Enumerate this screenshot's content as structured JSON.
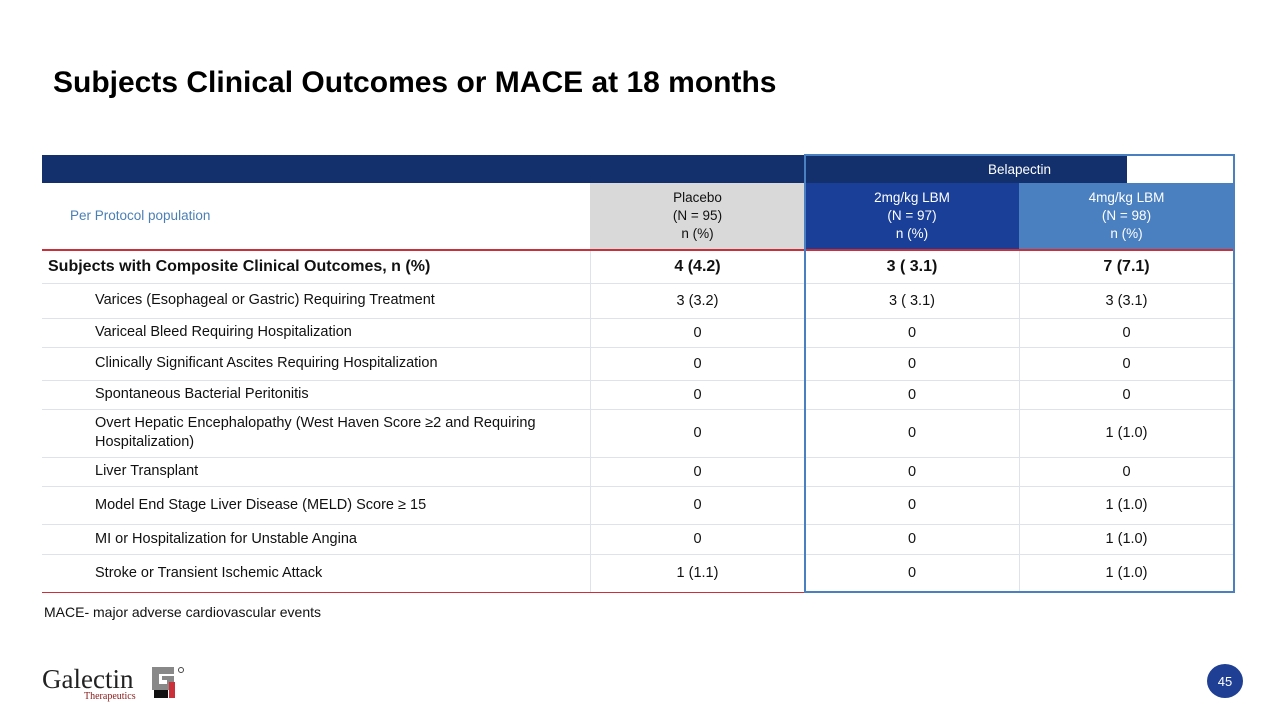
{
  "title": "Subjects Clinical Outcomes or MACE at 18 months",
  "table": {
    "group_header": "Belapectin",
    "population": "Per Protocol population",
    "columns": [
      {
        "name": "Placebo",
        "n": "(N = 95)",
        "unit": "n (%)"
      },
      {
        "name": "2mg/kg LBM",
        "n": "(N = 97)",
        "unit": "n (%)"
      },
      {
        "name": "4mg/kg LBM",
        "n": "(N = 98)",
        "unit": "n (%)"
      }
    ],
    "main_row": {
      "label": "Subjects with Composite Clinical Outcomes, n (%)",
      "values": [
        "4 (4.2)",
        "3 ( 3.1)",
        "7 (7.1)"
      ]
    },
    "rows": [
      {
        "label": "Varices (Esophageal or Gastric) Requiring Treatment",
        "values": [
          "3 (3.2)",
          "3 ( 3.1)",
          "3 (3.1)"
        ]
      },
      {
        "label": "Variceal Bleed Requiring Hospitalization",
        "values": [
          "0",
          "0",
          "0"
        ]
      },
      {
        "label": "Clinically Significant Ascites Requiring Hospitalization",
        "values": [
          "0",
          "0",
          "0"
        ]
      },
      {
        "label": "Spontaneous Bacterial Peritonitis",
        "values": [
          "0",
          "0",
          "0"
        ]
      },
      {
        "label": "Overt Hepatic Encephalopathy (West Haven Score ≥2 and Requiring Hospitalization)",
        "values": [
          "0",
          "0",
          "1 (1.0)"
        ]
      },
      {
        "label": "Liver Transplant",
        "values": [
          "0",
          "0",
          "0"
        ]
      },
      {
        "label": "Model End Stage Liver Disease (MELD) Score ≥ 15",
        "values": [
          "0",
          "0",
          "1 (1.0)"
        ]
      },
      {
        "label": "MI or Hospitalization for Unstable Angina",
        "values": [
          "0",
          "0",
          "1 (1.0)"
        ]
      },
      {
        "label": "Stroke or Transient Ischemic Attack",
        "values": [
          "1 (1.1)",
          "0",
          "1 (1.0)"
        ]
      }
    ]
  },
  "footnote": "MACE- major adverse cardiovascular events",
  "logo": {
    "name": "Galectin",
    "sub": "Therapeutics"
  },
  "page_number": "45"
}
